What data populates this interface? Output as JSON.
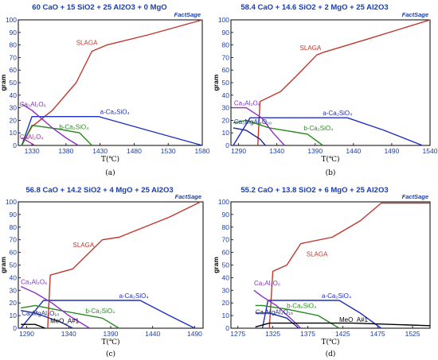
{
  "chart_data": [
    {
      "type": "line",
      "title": "60 CaO + 15 SiO2 + 25 Al2O3 + 0 MgO",
      "logo": "FactSage",
      "caption": "(a)",
      "xlabel": "T(℃)",
      "ylabel": "gram",
      "xlim": [
        1310,
        1580
      ],
      "ylim": [
        0,
        100
      ],
      "xticks": [
        1330,
        1380,
        1430,
        1480,
        1530,
        1580
      ],
      "xtick_labels": [
        "1330",
        "1380",
        "1430",
        "1480",
        "1530",
        "1580"
      ],
      "yticks": [
        0,
        10,
        20,
        30,
        40,
        50,
        60,
        70,
        80,
        90,
        100
      ],
      "series": [
        {
          "name": "SLAGA",
          "color": "#c0362c",
          "x": [
            1315,
            1330,
            1360,
            1395,
            1418,
            1440,
            1500,
            1580
          ],
          "y": [
            0,
            15,
            28,
            50,
            75,
            80,
            88,
            100
          ]
        },
        {
          "name": "a-Ca2SiO4",
          "color": "#1f2fbf",
          "x": [
            1315,
            1330,
            1428,
            1500,
            1580
          ],
          "y": [
            0,
            23,
            23,
            12,
            0
          ]
        },
        {
          "name": "b-Ca2SiO4",
          "color": "#2a8a22",
          "x": [
            1315,
            1330,
            1370,
            1400,
            1418
          ],
          "y": [
            0,
            16,
            13,
            10,
            0
          ]
        },
        {
          "name": "Ca3Al2O6",
          "color": "#8b2fc9",
          "x": [
            1315,
            1330,
            1360,
            1380,
            1398
          ],
          "y": [
            33,
            28,
            14,
            6,
            0
          ]
        },
        {
          "name": "CaAl2O4",
          "color": "#a030a0",
          "x": [
            1315,
            1328,
            1334
          ],
          "y": [
            6,
            2,
            0
          ]
        }
      ],
      "labels": [
        {
          "text": "SLAGA",
          "x": 1395,
          "y": 80,
          "color": "#c0362c"
        },
        {
          "text": "a-Ca₂SiO₄",
          "x": 1430,
          "y": 25,
          "color": "#1f2fbf"
        },
        {
          "text": "Ca₃Al₂O₆",
          "x": 1312,
          "y": 31,
          "color": "#8b2fc9"
        },
        {
          "text": "b-Ca₂SiO₄",
          "x": 1370,
          "y": 13,
          "color": "#2a8a22"
        },
        {
          "text": "CaAl₂O₄",
          "x": 1312,
          "y": 5,
          "color": "#a030a0"
        }
      ]
    },
    {
      "type": "line",
      "title": "58.4 CaO + 14.6 SiO2 + 2 MgO + 25 Al2O3",
      "logo": "FactSage",
      "caption": "(b)",
      "xlabel": "T(℃)",
      "ylabel": "gram",
      "xlim": [
        1280,
        1540
      ],
      "ylim": [
        0,
        100
      ],
      "xticks": [
        1290,
        1340,
        1390,
        1440,
        1490,
        1540
      ],
      "xtick_labels": [
        "1290",
        "1340",
        "1390",
        "1440",
        "1490",
        "1540"
      ],
      "yticks": [
        0,
        10,
        20,
        30,
        40,
        50,
        60,
        70,
        80,
        90,
        100
      ],
      "series": [
        {
          "name": "SLAGA",
          "color": "#c0362c",
          "x": [
            1315,
            1318,
            1345,
            1365,
            1392,
            1400,
            1460,
            1540
          ],
          "y": [
            0,
            35,
            43,
            55,
            72,
            74,
            85,
            100
          ]
        },
        {
          "name": "a-Ca2SiO4",
          "color": "#1f2fbf",
          "x": [
            1283,
            1305,
            1432,
            1480,
            1530
          ],
          "y": [
            0,
            22,
            22,
            12,
            0
          ]
        },
        {
          "name": "b-Ca2SiO4",
          "color": "#2a8a22",
          "x": [
            1283,
            1300,
            1330,
            1380,
            1400
          ],
          "y": [
            18,
            20,
            14,
            9,
            0
          ]
        },
        {
          "name": "Ca3Al2O6",
          "color": "#8b2fc9",
          "x": [
            1283,
            1300,
            1320,
            1335,
            1350
          ],
          "y": [
            30,
            30,
            22,
            10,
            0
          ]
        },
        {
          "name": "Ca3MgAl4O10",
          "color": "#1f2f8f",
          "x": [
            1283,
            1300,
            1318,
            1325
          ],
          "y": [
            14,
            12,
            5,
            0
          ]
        }
      ],
      "labels": [
        {
          "text": "SLAGA",
          "x": 1370,
          "y": 76,
          "color": "#c0362c"
        },
        {
          "text": "a-Ca₂SiO₄",
          "x": 1400,
          "y": 24,
          "color": "#1f2fbf"
        },
        {
          "text": "Ca₃Al₂O₆",
          "x": 1284,
          "y": 32,
          "color": "#8b2fc9"
        },
        {
          "text": "Ca₃MgAl₄O₁₀",
          "x": 1284,
          "y": 17,
          "color": "#1f2f8f"
        },
        {
          "text": "b-Ca₂SiO₄",
          "x": 1375,
          "y": 12,
          "color": "#2a8a22"
        }
      ]
    },
    {
      "type": "line",
      "title": "56.8 CaO + 14.2 SiO2 + 4 MgO + 25 Al2O3",
      "logo": "FactSage",
      "caption": "(c)",
      "xlabel": "T(℃)",
      "ylabel": "gram",
      "xlim": [
        1280,
        1500
      ],
      "ylim": [
        0,
        100
      ],
      "xticks": [
        1290,
        1340,
        1390,
        1440,
        1490
      ],
      "xtick_labels": [
        "1290",
        "1340",
        "1390",
        "1440",
        "1490"
      ],
      "yticks": [
        0,
        10,
        20,
        30,
        40,
        50,
        60,
        70,
        80,
        90,
        100
      ],
      "series": [
        {
          "name": "SLAGA",
          "color": "#c0362c",
          "x": [
            1315,
            1318,
            1345,
            1380,
            1400,
            1460,
            1497
          ],
          "y": [
            0,
            42,
            47,
            70,
            72,
            88,
            100
          ]
        },
        {
          "name": "a-Ca2SiO4",
          "color": "#1f2fbf",
          "x": [
            1283,
            1310,
            1425,
            1460,
            1490
          ],
          "y": [
            0,
            22,
            22,
            10,
            0
          ]
        },
        {
          "name": "b-Ca2SiO4",
          "color": "#2a8a22",
          "x": [
            1283,
            1300,
            1330,
            1380,
            1400
          ],
          "y": [
            16,
            18,
            14,
            8,
            0
          ]
        },
        {
          "name": "Ca3Al2O6",
          "color": "#8b2fc9",
          "x": [
            1283,
            1300,
            1320,
            1340,
            1365
          ],
          "y": [
            33,
            28,
            20,
            10,
            0
          ]
        },
        {
          "name": "Ca3MgAl4O10",
          "color": "#1f2f8f",
          "x": [
            1283,
            1300,
            1330,
            1345
          ],
          "y": [
            14,
            12,
            5,
            0
          ]
        },
        {
          "name": "MeO_A#1",
          "color": "#000000",
          "x": [
            1283,
            1300,
            1312
          ],
          "y": [
            3,
            3,
            0
          ]
        }
      ],
      "labels": [
        {
          "text": "SLAGA",
          "x": 1345,
          "y": 64,
          "color": "#c0362c"
        },
        {
          "text": "a-Ca₂SiO₄",
          "x": 1400,
          "y": 24,
          "color": "#1f2fbf"
        },
        {
          "text": "Ca₃Al₂O₆",
          "x": 1283,
          "y": 35,
          "color": "#8b2fc9"
        },
        {
          "text": "b-Ca₂SiO₄",
          "x": 1360,
          "y": 12,
          "color": "#2a8a22"
        },
        {
          "text": "Ca₃MgAl₄O₁₀",
          "x": 1284,
          "y": 10,
          "color": "#1f2f8f"
        },
        {
          "text": "MeO_A#1",
          "x": 1318,
          "y": 4,
          "color": "#000000"
        }
      ]
    },
    {
      "type": "line",
      "title": "55.2 CaO + 13.8 SiO2 + 6 MgO + 25 Al2O3",
      "logo": "FactSage",
      "caption": "(d)",
      "xlabel": "T(℃)",
      "ylabel": "gram",
      "xlim": [
        1265,
        1550
      ],
      "ylim": [
        0,
        100
      ],
      "xticks": [
        1275,
        1325,
        1375,
        1425,
        1475,
        1525
      ],
      "xtick_labels": [
        "1275",
        "1325",
        "1375",
        "1425",
        "1475",
        "1525"
      ],
      "yticks": [
        0,
        10,
        20,
        30,
        40,
        50,
        60,
        70,
        80,
        90,
        100
      ],
      "series": [
        {
          "name": "SLAGA",
          "color": "#c0362c",
          "x": [
            1320,
            1325,
            1345,
            1365,
            1410,
            1450,
            1480,
            1550
          ],
          "y": [
            0,
            45,
            50,
            67,
            72,
            85,
            99,
            99
          ]
        },
        {
          "name": "a-Ca2SiO4",
          "color": "#1f2fbf",
          "x": [
            1310,
            1318,
            1420,
            1450,
            1480
          ],
          "y": [
            0,
            22,
            22,
            12,
            0
          ]
        },
        {
          "name": "b-Ca2SiO4",
          "color": "#2a8a22",
          "x": [
            1300,
            1310,
            1345,
            1390,
            1420
          ],
          "y": [
            18,
            18,
            15,
            10,
            0
          ]
        },
        {
          "name": "Ca3Al2O6",
          "color": "#8b2fc9",
          "x": [
            1298,
            1310,
            1330,
            1350,
            1365
          ],
          "y": [
            30,
            25,
            18,
            8,
            0
          ]
        },
        {
          "name": "Ca3MgAl4O10",
          "color": "#1f2f8f",
          "x": [
            1300,
            1320,
            1345,
            1362
          ],
          "y": [
            12,
            12,
            8,
            0
          ]
        },
        {
          "name": "MeO_A#1",
          "color": "#000000",
          "x": [
            1300,
            1320,
            1440,
            1550
          ],
          "y": [
            1,
            4,
            4,
            2
          ]
        }
      ],
      "labels": [
        {
          "text": "SLAGA",
          "x": 1373,
          "y": 57,
          "color": "#c0362c"
        },
        {
          "text": "a-Ca₂SiO₄",
          "x": 1395,
          "y": 24,
          "color": "#1f2fbf"
        },
        {
          "text": "Ca₃Al₂O₆",
          "x": 1298,
          "y": 34,
          "color": "#8b2fc9"
        },
        {
          "text": "b-Ca₂SiO₄",
          "x": 1345,
          "y": 16,
          "color": "#2a8a22"
        },
        {
          "text": "Ca₃MgAl₄O₁₀",
          "x": 1300,
          "y": 11,
          "color": "#1f2f8f"
        },
        {
          "text": "MeO_A#1",
          "x": 1420,
          "y": 5,
          "color": "#000000"
        }
      ]
    }
  ]
}
